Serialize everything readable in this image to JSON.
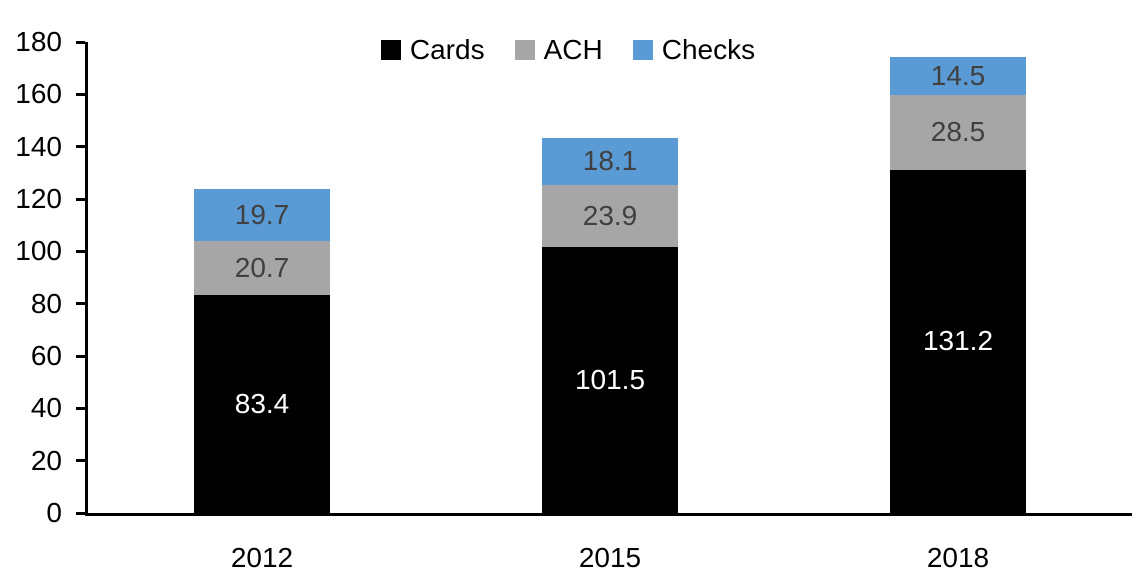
{
  "chart_data": {
    "type": "bar",
    "stacked": true,
    "title": "",
    "categories": [
      "2012",
      "2015",
      "2018"
    ],
    "series": [
      {
        "name": "Cards",
        "color": "#000000",
        "label_color": "#ffffff",
        "values": [
          83.4,
          101.5,
          131.2
        ]
      },
      {
        "name": "ACH",
        "color": "#A6A6A6",
        "label_color": "#404040",
        "values": [
          20.7,
          23.9,
          28.5
        ]
      },
      {
        "name": "Checks",
        "color": "#5B9BD5",
        "label_color": "#404040",
        "values": [
          19.7,
          18.1,
          14.5
        ]
      }
    ],
    "ylim": [
      0,
      180
    ],
    "yticks": [
      0,
      20,
      40,
      60,
      80,
      100,
      120,
      140,
      160,
      180
    ],
    "legend": {
      "position": "top",
      "entries": [
        "Cards",
        "ACH",
        "Checks"
      ]
    },
    "grid": false,
    "axis_color": "#000000"
  }
}
